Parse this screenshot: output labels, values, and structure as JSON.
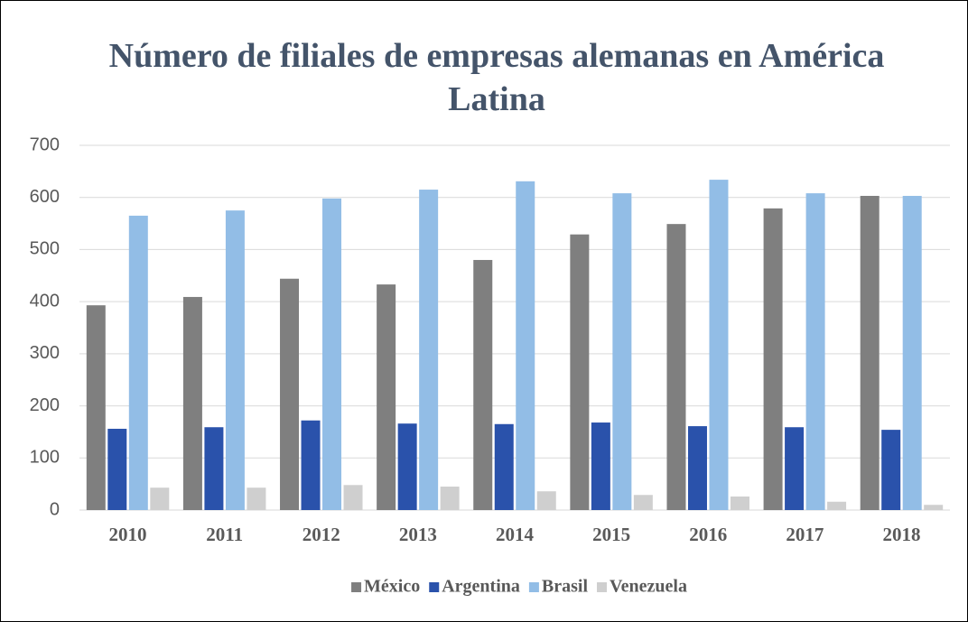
{
  "chart_data": {
    "type": "bar",
    "title": "Número de filiales de empresas alemanas en América Latina",
    "categories": [
      "2010",
      "2011",
      "2012",
      "2013",
      "2014",
      "2015",
      "2016",
      "2017",
      "2018"
    ],
    "series": [
      {
        "name": "México",
        "color": "#7f7f7f",
        "values": [
          393,
          409,
          444,
          433,
          480,
          529,
          549,
          579,
          603
        ]
      },
      {
        "name": "Argentina",
        "color": "#2a52ab",
        "values": [
          156,
          159,
          172,
          166,
          165,
          168,
          161,
          159,
          154
        ]
      },
      {
        "name": "Brasil",
        "color": "#92bde6",
        "values": [
          565,
          575,
          598,
          615,
          631,
          608,
          634,
          608,
          603
        ]
      },
      {
        "name": "Venezuela",
        "color": "#cfcfcf",
        "values": [
          43,
          43,
          48,
          45,
          36,
          29,
          26,
          16,
          10
        ]
      }
    ],
    "ylim": [
      0,
      700
    ],
    "yticks": [
      0,
      100,
      200,
      300,
      400,
      500,
      600,
      700
    ],
    "grid": true,
    "legend": "bottom"
  }
}
